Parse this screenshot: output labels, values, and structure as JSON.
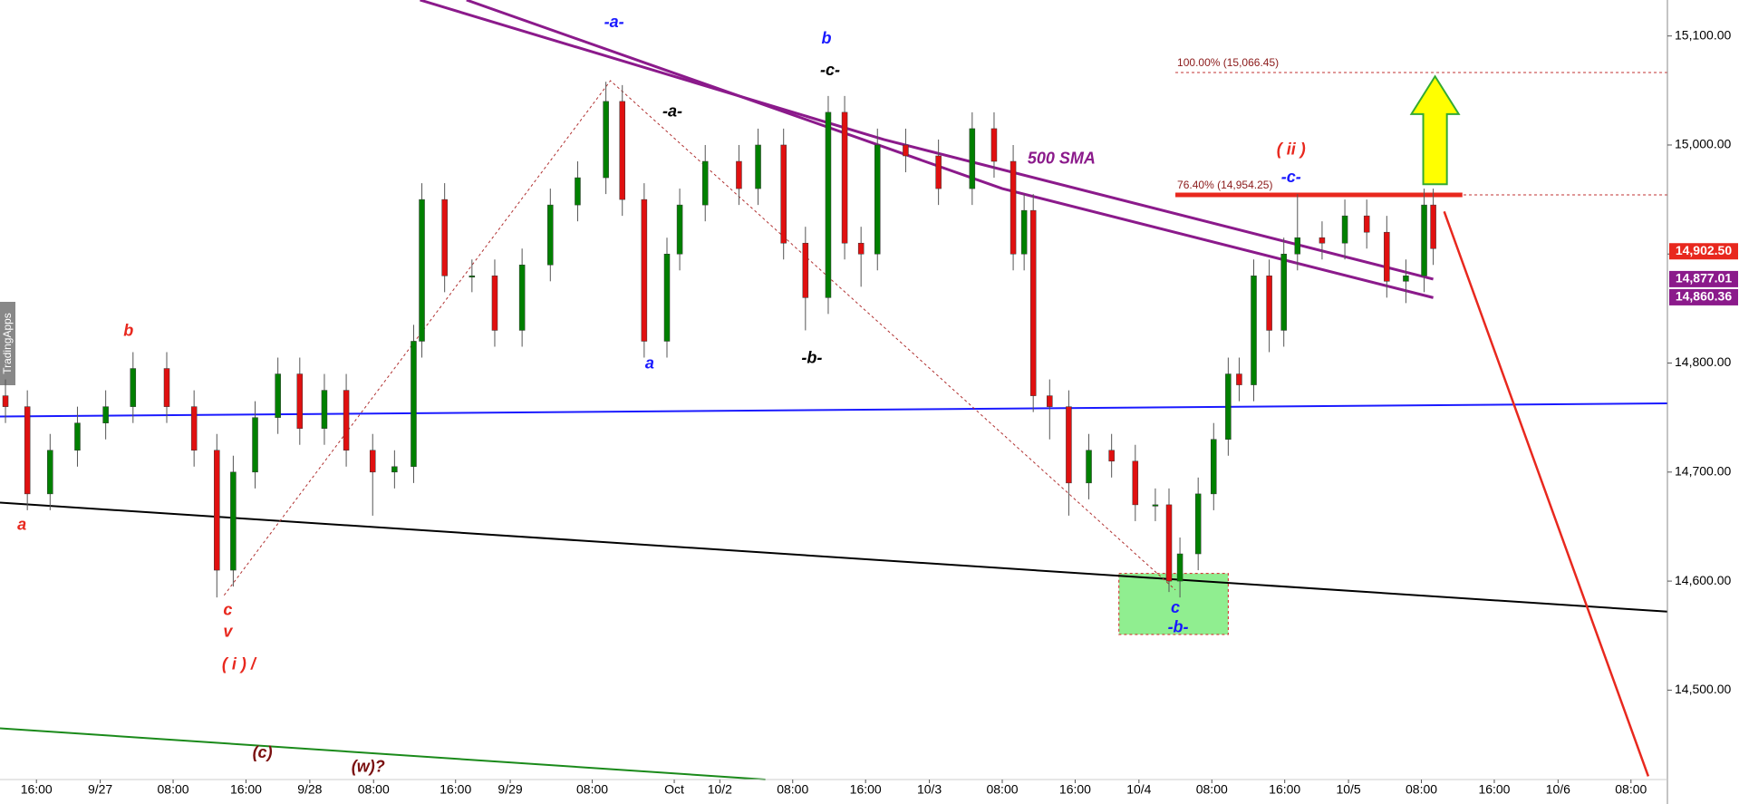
{
  "chart_data": {
    "type": "candlestick",
    "side_label": "TradingApps",
    "up_color": "#008000",
    "down_color": "#e01010",
    "x": [
      0.6,
      3,
      5.5,
      8.5,
      11.6,
      14.6,
      18.3,
      21.3,
      23.8,
      25.6,
      28,
      30.5,
      32.9,
      35.6,
      38,
      40.9,
      43.3,
      45.4,
      46.3,
      48.8,
      51.8,
      54.3,
      57.3,
      60.4,
      63.4,
      66.5,
      68.3,
      70.7,
      73.2,
      74.6,
      77.4,
      81.1,
      83.2,
      86,
      88.4,
      90.9,
      92.7,
      94.5,
      96.3,
      99.4,
      103,
      106.7,
      109.1,
      111.2,
      112.4,
      113.4,
      115.2,
      117.3,
      119.5,
      122,
      124.6,
      126.8,
      128.3,
      129.5,
      131.5,
      133.2,
      134.8,
      136,
      137.6,
      139.3,
      140.9,
      142.4,
      145.1,
      147.6,
      150,
      152.2,
      154.3,
      156.3,
      157.3
    ],
    "open": [
      14770,
      14760,
      14680,
      14720,
      14745,
      14760,
      14795,
      14760,
      14720,
      14610,
      14700,
      14750,
      14790,
      14740,
      14775,
      14720,
      14700,
      14705,
      14820,
      14950,
      14880,
      14880,
      14830,
      14890,
      14945,
      14970,
      15040,
      14950,
      14820,
      14900,
      14945,
      14985,
      14960,
      15000,
      14910,
      14860,
      15030,
      14910,
      14900,
      15000,
      14990,
      14960,
      15015,
      14985,
      14900,
      14940,
      14770,
      14760,
      14690,
      14720,
      14710,
      14670,
      14670,
      14600,
      14625,
      14680,
      14730,
      14790,
      14780,
      14880,
      14830,
      14900,
      14915,
      14910,
      14935,
      14920,
      14875,
      14880,
      14945
    ],
    "high": [
      14785,
      14775,
      14735,
      14760,
      14775,
      14810,
      14810,
      14775,
      14735,
      14715,
      14765,
      14805,
      14805,
      14790,
      14790,
      14735,
      14720,
      14835,
      14965,
      14965,
      14895,
      14895,
      14905,
      14960,
      14985,
      15058,
      15055,
      14965,
      14915,
      14960,
      15000,
      15000,
      15015,
      15015,
      14925,
      15045,
      15045,
      14925,
      15015,
      15015,
      15005,
      15030,
      15030,
      15000,
      14955,
      14955,
      14785,
      14775,
      14735,
      14735,
      14725,
      14685,
      14685,
      14640,
      14695,
      14745,
      14805,
      14805,
      14895,
      14895,
      14915,
      14955,
      14930,
      14950,
      14950,
      14935,
      14895,
      14960,
      14960
    ],
    "low": [
      14745,
      14665,
      14665,
      14705,
      14730,
      14745,
      14745,
      14705,
      14585,
      14595,
      14685,
      14735,
      14725,
      14725,
      14705,
      14660,
      14685,
      14690,
      14805,
      14865,
      14865,
      14815,
      14815,
      14875,
      14930,
      14955,
      14935,
      14805,
      14805,
      14885,
      14930,
      14945,
      14945,
      14895,
      14830,
      14845,
      14895,
      14870,
      14885,
      14975,
      14945,
      14945,
      14970,
      14885,
      14885,
      14755,
      14730,
      14660,
      14675,
      14695,
      14655,
      14655,
      14590,
      14585,
      14610,
      14665,
      14715,
      14765,
      14765,
      14810,
      14815,
      14885,
      14895,
      14895,
      14905,
      14860,
      14855,
      14865,
      14890
    ],
    "close": [
      14760,
      14680,
      14720,
      14745,
      14760,
      14795,
      14760,
      14720,
      14610,
      14700,
      14750,
      14790,
      14740,
      14775,
      14720,
      14700,
      14705,
      14820,
      14950,
      14880,
      14880,
      14830,
      14890,
      14945,
      14970,
      15040,
      14950,
      14820,
      14900,
      14945,
      14985,
      14960,
      15000,
      14910,
      14860,
      15030,
      14910,
      14900,
      15000,
      14990,
      14960,
      15015,
      14985,
      14900,
      14940,
      14770,
      14760,
      14690,
      14720,
      14710,
      14670,
      14670,
      14600,
      14625,
      14680,
      14730,
      14790,
      14780,
      14880,
      14830,
      14900,
      14915,
      14910,
      14935,
      14920,
      14875,
      14880,
      14945,
      14905
    ],
    "xlim": [
      0,
      183
    ],
    "xticks": [
      {
        "value": 4,
        "label": "16:00"
      },
      {
        "value": 11,
        "label": "9/27"
      },
      {
        "value": 19,
        "label": "08:00"
      },
      {
        "value": 27,
        "label": "16:00"
      },
      {
        "value": 34,
        "label": "9/28"
      },
      {
        "value": 41,
        "label": "08:00"
      },
      {
        "value": 50,
        "label": "16:00"
      },
      {
        "value": 56,
        "label": "9/29"
      },
      {
        "value": 65,
        "label": "08:00"
      },
      {
        "value": 74,
        "label": "Oct"
      },
      {
        "value": 79,
        "label": "10/2"
      },
      {
        "value": 87,
        "label": "08:00"
      },
      {
        "value": 95,
        "label": "16:00"
      },
      {
        "value": 102,
        "label": "10/3"
      },
      {
        "value": 110,
        "label": "08:00"
      },
      {
        "value": 118,
        "label": "16:00"
      },
      {
        "value": 125,
        "label": "10/4"
      },
      {
        "value": 133,
        "label": "08:00"
      },
      {
        "value": 141,
        "label": "16:00"
      },
      {
        "value": 148,
        "label": "10/5"
      },
      {
        "value": 156,
        "label": "08:00"
      },
      {
        "value": 164,
        "label": "16:00"
      },
      {
        "value": 171,
        "label": "10/6"
      },
      {
        "value": 179,
        "label": "08:00"
      }
    ],
    "ylim": [
      14418,
      15133
    ],
    "yticks": [
      {
        "value": 14500,
        "label": "14,500.00"
      },
      {
        "value": 14600,
        "label": "14,600.00"
      },
      {
        "value": 14700,
        "label": "14,700.00"
      },
      {
        "value": 14800,
        "label": "14,800.00"
      },
      {
        "value": 14900,
        "label": "14,900.00"
      },
      {
        "value": 15000,
        "label": "15,000.00"
      },
      {
        "value": 15100,
        "label": "15,100.00"
      }
    ],
    "lines": [
      {
        "color": "#8b1a8b",
        "width": 3,
        "dash": false,
        "x": [
          46.1,
          97,
          157.3
        ],
        "y": [
          15133,
          15005,
          14877
        ]
      },
      {
        "color": "#8b1a8b",
        "width": 3,
        "dash": false,
        "x": [
          51.2,
          110,
          157.3
        ],
        "y": [
          15133,
          14960,
          14860
        ]
      },
      {
        "color": "#1a1aff",
        "width": 2,
        "dash": false,
        "x": [
          0,
          183
        ],
        "y": [
          14751,
          14763
        ]
      },
      {
        "color": "#000000",
        "width": 2,
        "dash": false,
        "x": [
          0,
          183
        ],
        "y": [
          14672,
          14572
        ]
      },
      {
        "color": "#1a8a1a",
        "width": 2,
        "dash": false,
        "x": [
          0,
          84
        ],
        "y": [
          14465,
          14418
        ]
      },
      {
        "color": "#e8281e",
        "width": 2.5,
        "dash": false,
        "x": [
          158.5,
          180.9
        ],
        "y": [
          14939,
          14421
        ]
      },
      {
        "color": "#b03030",
        "width": 1,
        "dash": true,
        "x": [
          24.6,
          67,
          129
        ],
        "y": [
          14587,
          15059,
          14592
        ]
      },
      {
        "color": "#e8281e",
        "width": 5,
        "dash": false,
        "x": [
          129,
          160.5
        ],
        "y": [
          14954.25,
          14954.25
        ]
      }
    ],
    "levels": [
      {
        "label": "100.00% (15,066.45)",
        "value": 15066.45,
        "x": [
          129,
          183
        ]
      },
      {
        "label": "76.40% (14,954.25)",
        "value": 14954.25,
        "x": [
          129,
          183
        ]
      }
    ],
    "zone": {
      "color": "#90ee90",
      "x": [
        122.8,
        134.8
      ],
      "y": [
        14551,
        14607
      ]
    },
    "arrow": {
      "color": "#ffff00",
      "stroke": "#33aa33",
      "x": [
        154.9,
        160.1
      ],
      "y": [
        14964,
        15063
      ]
    },
    "price_tags": [
      {
        "value": 14902.5,
        "label": "14,902.50",
        "color": "#e8281e"
      },
      {
        "value": 14877.01,
        "label": "14,877.01",
        "color": "#8b1a8b"
      },
      {
        "value": 14860.36,
        "label": "14,860.36",
        "color": "#8b1a8b"
      }
    ],
    "annotations": [
      {
        "text": "-a-",
        "x": 67.4,
        "y": 15112,
        "color": "#1a1aff"
      },
      {
        "text": "b",
        "x": 90.7,
        "y": 15097,
        "color": "#1a1aff"
      },
      {
        "text": "-c-",
        "x": 91.1,
        "y": 15068,
        "color": "#000000"
      },
      {
        "text": "-a-",
        "x": 73.8,
        "y": 15030,
        "color": "#000000"
      },
      {
        "text": "( ii )",
        "x": 141.7,
        "y": 14995,
        "color": "#e8281e"
      },
      {
        "text": "-c-",
        "x": 141.7,
        "y": 14970,
        "color": "#1a1aff"
      },
      {
        "text": "500 SMA",
        "x": 116.5,
        "y": 14987,
        "color": "#8b1a8b"
      },
      {
        "text": "b",
        "x": 14.1,
        "y": 14829,
        "color": "#e8281e"
      },
      {
        "text": "a",
        "x": 71.3,
        "y": 14799,
        "color": "#1a1aff"
      },
      {
        "text": "-b-",
        "x": 89.1,
        "y": 14804,
        "color": "#000000"
      },
      {
        "text": "a",
        "x": 2.4,
        "y": 14651,
        "color": "#e8281e"
      },
      {
        "text": "c",
        "x": 25,
        "y": 14573,
        "color": "#e8281e"
      },
      {
        "text": "v",
        "x": 25,
        "y": 14553,
        "color": "#e8281e"
      },
      {
        "text": "( i ) /",
        "x": 26.2,
        "y": 14523,
        "color": "#e8281e"
      },
      {
        "text": "c",
        "x": 129,
        "y": 14575,
        "color": "#1a1aff"
      },
      {
        "text": "-b-",
        "x": 129.3,
        "y": 14557,
        "color": "#1a1aff"
      },
      {
        "text": "(c)",
        "x": 28.8,
        "y": 14442,
        "color": "#7a1010"
      },
      {
        "text": "(w)?",
        "x": 40.4,
        "y": 14429,
        "color": "#7a1010"
      }
    ]
  }
}
